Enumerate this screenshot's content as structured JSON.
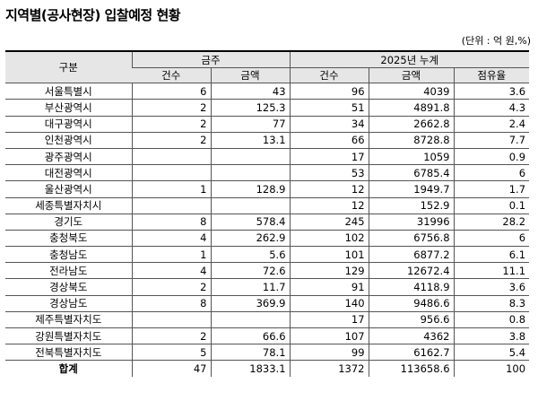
{
  "title": "지역별(공사현장) 입찰예정 현황",
  "unit": "(단위 : 억 원,%)",
  "header": {
    "region": "구분",
    "group_month": "금주",
    "group_ytd": "2025년 누계",
    "cols": [
      "건수",
      "금액",
      "건수",
      "금액",
      "점유율"
    ]
  },
  "rows": [
    {
      "region": "서울특별시",
      "w_cnt": "6",
      "w_amt": "43",
      "y_cnt": "96",
      "y_amt": "4039",
      "share": "3.6"
    },
    {
      "region": "부산광역시",
      "w_cnt": "2",
      "w_amt": "125.3",
      "y_cnt": "51",
      "y_amt": "4891.8",
      "share": "4.3"
    },
    {
      "region": "대구광역시",
      "w_cnt": "2",
      "w_amt": "77",
      "y_cnt": "34",
      "y_amt": "2662.8",
      "share": "2.4"
    },
    {
      "region": "인천광역시",
      "w_cnt": "2",
      "w_amt": "13.1",
      "y_cnt": "66",
      "y_amt": "8728.8",
      "share": "7.7"
    },
    {
      "region": "광주광역시",
      "w_cnt": "",
      "w_amt": "",
      "y_cnt": "17",
      "y_amt": "1059",
      "share": "0.9"
    },
    {
      "region": "대전광역시",
      "w_cnt": "",
      "w_amt": "",
      "y_cnt": "53",
      "y_amt": "6785.4",
      "share": "6"
    },
    {
      "region": "울산광역시",
      "w_cnt": "1",
      "w_amt": "128.9",
      "y_cnt": "12",
      "y_amt": "1949.7",
      "share": "1.7"
    },
    {
      "region": "세종특별자치시",
      "w_cnt": "",
      "w_amt": "",
      "y_cnt": "12",
      "y_amt": "152.9",
      "share": "0.1"
    },
    {
      "region": "경기도",
      "w_cnt": "8",
      "w_amt": "578.4",
      "y_cnt": "245",
      "y_amt": "31996",
      "share": "28.2"
    },
    {
      "region": "충청북도",
      "w_cnt": "4",
      "w_amt": "262.9",
      "y_cnt": "102",
      "y_amt": "6756.8",
      "share": "6"
    },
    {
      "region": "충청남도",
      "w_cnt": "1",
      "w_amt": "5.6",
      "y_cnt": "101",
      "y_amt": "6877.2",
      "share": "6.1"
    },
    {
      "region": "전라남도",
      "w_cnt": "4",
      "w_amt": "72.6",
      "y_cnt": "129",
      "y_amt": "12672.4",
      "share": "11.1"
    },
    {
      "region": "경상북도",
      "w_cnt": "2",
      "w_amt": "11.7",
      "y_cnt": "91",
      "y_amt": "4118.9",
      "share": "3.6"
    },
    {
      "region": "경상남도",
      "w_cnt": "8",
      "w_amt": "369.9",
      "y_cnt": "140",
      "y_amt": "9486.6",
      "share": "8.3"
    },
    {
      "region": "제주특별자치도",
      "w_cnt": "",
      "w_amt": "",
      "y_cnt": "17",
      "y_amt": "956.6",
      "share": "0.8"
    },
    {
      "region": "강원특별자치도",
      "w_cnt": "2",
      "w_amt": "66.6",
      "y_cnt": "107",
      "y_amt": "4362",
      "share": "3.8"
    },
    {
      "region": "전북특별자치도",
      "w_cnt": "5",
      "w_amt": "78.1",
      "y_cnt": "99",
      "y_amt": "6162.7",
      "share": "5.4"
    }
  ],
  "total": {
    "region": "합계",
    "w_cnt": "47",
    "w_amt": "1833.1",
    "y_cnt": "1372",
    "y_amt": "113658.6",
    "share": "100"
  }
}
